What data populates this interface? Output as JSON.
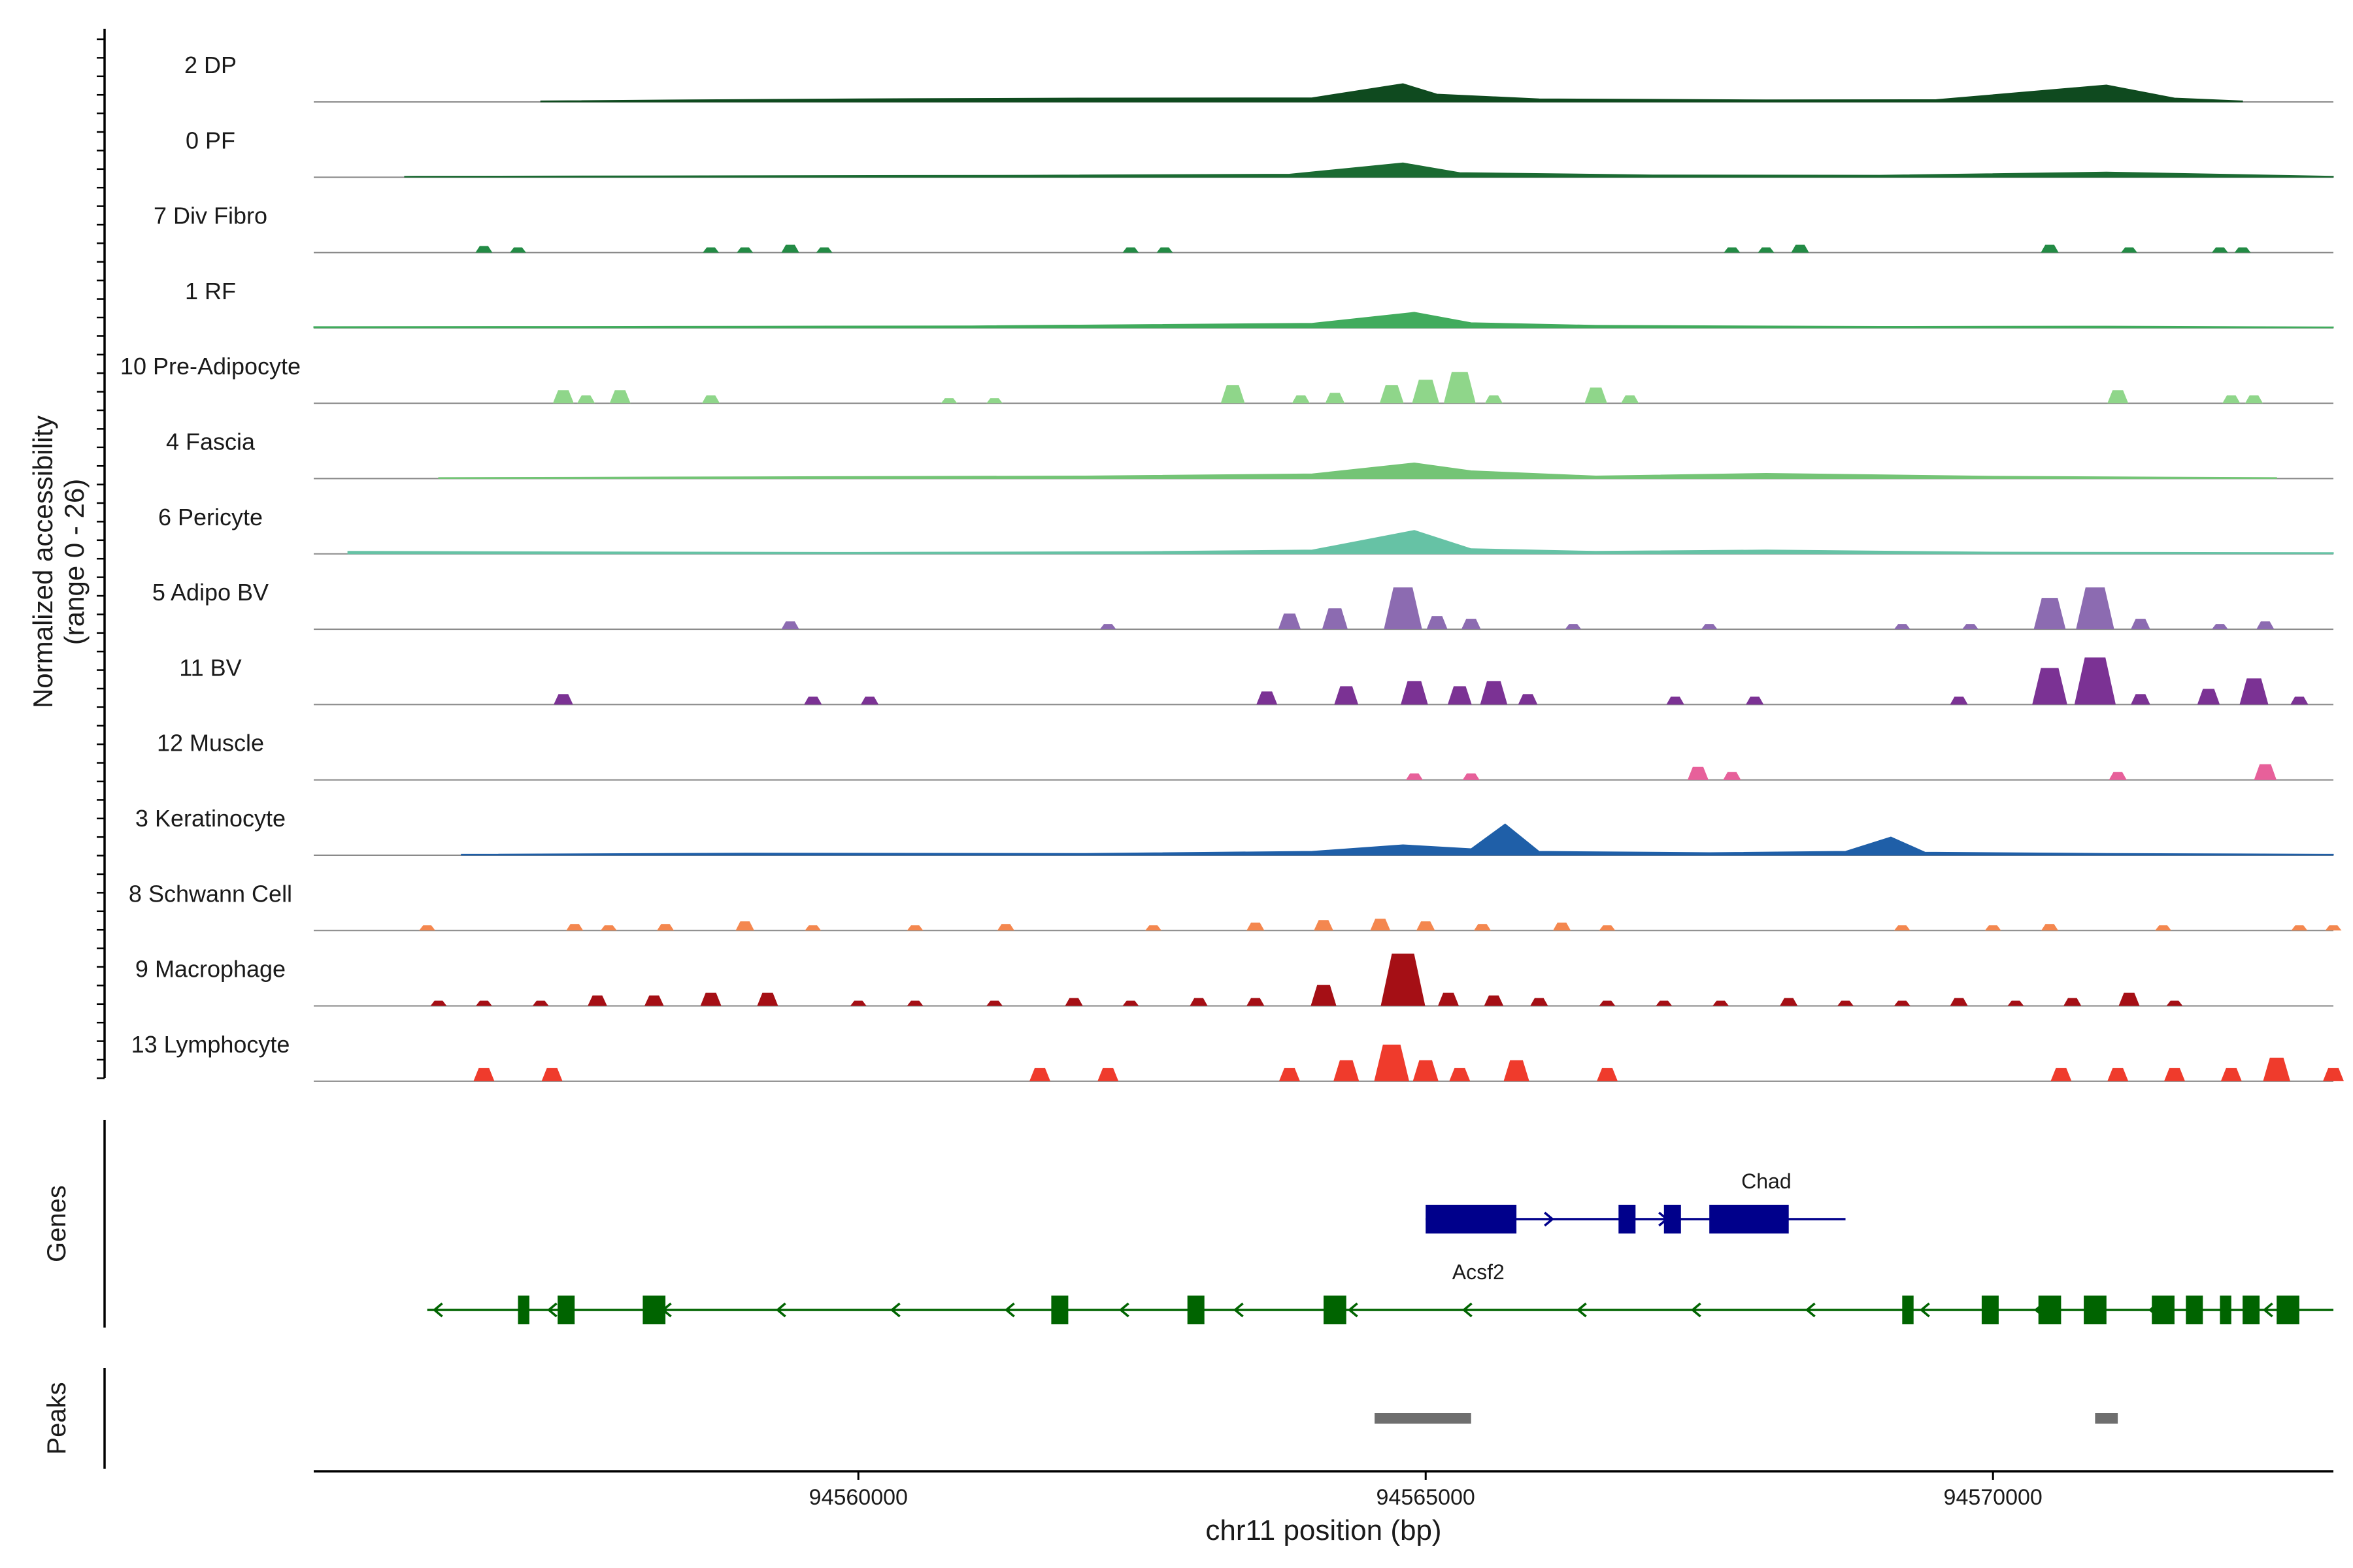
{
  "chart_data": {
    "type": "area",
    "title": "",
    "ylabel": "Normalized accessibility\n(range 0 - 26)",
    "y_range": [
      0,
      26
    ],
    "xlabel": "chr11 position (bp)",
    "xlim": [
      94555200,
      94573000
    ],
    "x_ticks": [
      94560000,
      94565000,
      94570000
    ],
    "x_tick_labels": [
      "94560000",
      "94565000",
      "94570000"
    ],
    "panel_labels": {
      "genes": "Genes",
      "peaks": "Peaks"
    },
    "tracks": [
      {
        "name": "2 DP",
        "color": "#0f4a1f",
        "mode": "continuous",
        "coverage": [
          94557200,
          94572200
        ],
        "points": [
          [
            94557200,
            0.4
          ],
          [
            94558500,
            0.8
          ],
          [
            94560000,
            1.2
          ],
          [
            94562000,
            1.5
          ],
          [
            94564000,
            1.6
          ],
          [
            94564800,
            7.0
          ],
          [
            94565100,
            3.0
          ],
          [
            94566000,
            1.2
          ],
          [
            94568000,
            0.8
          ],
          [
            94569500,
            0.9
          ],
          [
            94571000,
            6.5
          ],
          [
            94571600,
            1.5
          ],
          [
            94572200,
            0.4
          ]
        ]
      },
      {
        "name": "0 PF",
        "color": "#1b6b32",
        "mode": "continuous",
        "coverage": [
          94556000,
          94573000
        ],
        "points": [
          [
            94556000,
            0.4
          ],
          [
            94559000,
            0.6
          ],
          [
            94561500,
            0.8
          ],
          [
            94563800,
            1.2
          ],
          [
            94564800,
            5.5
          ],
          [
            94565300,
            1.8
          ],
          [
            94567000,
            0.9
          ],
          [
            94569000,
            0.8
          ],
          [
            94571000,
            2.0
          ],
          [
            94573000,
            0.4
          ]
        ]
      },
      {
        "name": "7 Div Fibro",
        "color": "#238b45",
        "mode": "blocks",
        "points": [
          [
            94556700,
            2.5
          ],
          [
            94557000,
            2.0
          ],
          [
            94558700,
            2.0
          ],
          [
            94559000,
            2.0
          ],
          [
            94559400,
            3.0
          ],
          [
            94559700,
            2.0
          ],
          [
            94562400,
            2.0
          ],
          [
            94562700,
            2.0
          ],
          [
            94567700,
            2.0
          ],
          [
            94568000,
            2.0
          ],
          [
            94568300,
            3.0
          ],
          [
            94570500,
            3.0
          ],
          [
            94571200,
            2.0
          ],
          [
            94572000,
            2.0
          ],
          [
            94572200,
            2.0
          ]
        ]
      },
      {
        "name": "1 RF",
        "color": "#41ab5d",
        "mode": "continuous",
        "coverage": [
          94555200,
          94573000
        ],
        "points": [
          [
            94555200,
            0.5
          ],
          [
            94558000,
            0.6
          ],
          [
            94561000,
            0.8
          ],
          [
            94564000,
            1.8
          ],
          [
            94564900,
            6.0
          ],
          [
            94565400,
            2.0
          ],
          [
            94566500,
            1.0
          ],
          [
            94569000,
            0.6
          ],
          [
            94571000,
            0.7
          ],
          [
            94573000,
            0.4
          ]
        ]
      },
      {
        "name": "10 Pre-Adipocyte",
        "color": "#8fd68a",
        "mode": "blocks",
        "points": [
          [
            94557400,
            5.0
          ],
          [
            94557600,
            3.0
          ],
          [
            94557900,
            5.0
          ],
          [
            94558700,
            3.0
          ],
          [
            94560800,
            2.0
          ],
          [
            94561200,
            2.0
          ],
          [
            94563300,
            7.0
          ],
          [
            94563900,
            3.0
          ],
          [
            94564200,
            4.0
          ],
          [
            94564700,
            7.0
          ],
          [
            94565000,
            9.0
          ],
          [
            94565300,
            12.0
          ],
          [
            94565600,
            3.0
          ],
          [
            94566500,
            6.0
          ],
          [
            94566800,
            3.0
          ],
          [
            94571100,
            5.0
          ],
          [
            94572100,
            3.0
          ],
          [
            94572300,
            3.0
          ]
        ]
      },
      {
        "name": "4 Fascia",
        "color": "#74c476",
        "mode": "continuous",
        "coverage": [
          94556300,
          94572500
        ],
        "points": [
          [
            94556300,
            0.4
          ],
          [
            94559000,
            0.7
          ],
          [
            94562000,
            1.0
          ],
          [
            94564000,
            1.8
          ],
          [
            94564900,
            6.0
          ],
          [
            94565400,
            3.0
          ],
          [
            94566500,
            1.0
          ],
          [
            94568000,
            2.0
          ],
          [
            94570000,
            0.9
          ],
          [
            94572500,
            0.4
          ]
        ]
      },
      {
        "name": "6 Pericyte",
        "color": "#66c2a5",
        "mode": "continuous",
        "coverage": [
          94555500,
          94573000
        ],
        "points": [
          [
            94555500,
            1.0
          ],
          [
            94557500,
            0.8
          ],
          [
            94560000,
            0.6
          ],
          [
            94562500,
            0.9
          ],
          [
            94564000,
            1.5
          ],
          [
            94564900,
            9.0
          ],
          [
            94565400,
            2.0
          ],
          [
            94566500,
            1.0
          ],
          [
            94568000,
            1.5
          ],
          [
            94570000,
            0.7
          ],
          [
            94573000,
            0.5
          ]
        ]
      },
      {
        "name": "5 Adipo BV",
        "color": "#8c6bb1",
        "mode": "blocks",
        "points": [
          [
            94559400,
            3.0
          ],
          [
            94562200,
            2.0
          ],
          [
            94563800,
            6.0
          ],
          [
            94564200,
            8.0
          ],
          [
            94564800,
            16.0
          ],
          [
            94565100,
            5.0
          ],
          [
            94565400,
            4.0
          ],
          [
            94566300,
            2.0
          ],
          [
            94567500,
            2.0
          ],
          [
            94569200,
            2.0
          ],
          [
            94569800,
            2.0
          ],
          [
            94570500,
            12.0
          ],
          [
            94570900,
            16.0
          ],
          [
            94571300,
            4.0
          ],
          [
            94572000,
            2.0
          ],
          [
            94572400,
            3.0
          ]
        ]
      },
      {
        "name": "11 BV",
        "color": "#7b3294",
        "mode": "blocks",
        "points": [
          [
            94557400,
            4.0
          ],
          [
            94559600,
            3.0
          ],
          [
            94560100,
            3.0
          ],
          [
            94563600,
            5.0
          ],
          [
            94564300,
            7.0
          ],
          [
            94564900,
            9.0
          ],
          [
            94565300,
            7.0
          ],
          [
            94565600,
            9.0
          ],
          [
            94565900,
            4.0
          ],
          [
            94567200,
            3.0
          ],
          [
            94567900,
            3.0
          ],
          [
            94569700,
            3.0
          ],
          [
            94570500,
            14.0
          ],
          [
            94570900,
            18.0
          ],
          [
            94571300,
            4.0
          ],
          [
            94571900,
            6.0
          ],
          [
            94572300,
            10.0
          ],
          [
            94572700,
            3.0
          ]
        ]
      },
      {
        "name": "12 Muscle",
        "color": "#e7609a",
        "mode": "blocks",
        "points": [
          [
            94564900,
            2.5
          ],
          [
            94565400,
            2.5
          ],
          [
            94567400,
            5.0
          ],
          [
            94567700,
            3.0
          ],
          [
            94571100,
            3.0
          ],
          [
            94572400,
            6.0
          ]
        ]
      },
      {
        "name": "3 Keratinocyte",
        "color": "#1f5fa8",
        "mode": "continuous",
        "coverage": [
          94556500,
          94573000
        ],
        "points": [
          [
            94556500,
            0.4
          ],
          [
            94559000,
            0.8
          ],
          [
            94562000,
            0.7
          ],
          [
            94564000,
            1.5
          ],
          [
            94564800,
            4.0
          ],
          [
            94565400,
            2.5
          ],
          [
            94565700,
            12.0
          ],
          [
            94566000,
            1.5
          ],
          [
            94567500,
            1.0
          ],
          [
            94568700,
            1.5
          ],
          [
            94569100,
            7.0
          ],
          [
            94569400,
            1.2
          ],
          [
            94571000,
            0.7
          ],
          [
            94573000,
            0.4
          ]
        ]
      },
      {
        "name": "8 Schwann Cell",
        "color": "#f4874f",
        "mode": "blocks",
        "points": [
          [
            94556200,
            2.0
          ],
          [
            94557500,
            2.5
          ],
          [
            94557800,
            2.0
          ],
          [
            94558300,
            2.5
          ],
          [
            94559000,
            3.5
          ],
          [
            94559600,
            2.0
          ],
          [
            94560500,
            2.0
          ],
          [
            94561300,
            2.5
          ],
          [
            94562600,
            2.0
          ],
          [
            94563500,
            3.0
          ],
          [
            94564100,
            4.0
          ],
          [
            94564600,
            4.5
          ],
          [
            94565000,
            3.5
          ],
          [
            94565500,
            2.5
          ],
          [
            94566200,
            3.0
          ],
          [
            94566600,
            2.0
          ],
          [
            94569200,
            2.0
          ],
          [
            94570000,
            2.0
          ],
          [
            94570500,
            2.5
          ],
          [
            94571500,
            2.0
          ],
          [
            94572700,
            2.0
          ],
          [
            94573000,
            2.0
          ]
        ]
      },
      {
        "name": "9 Macrophage",
        "color": "#a50f15",
        "mode": "blocks",
        "points": [
          [
            94556300,
            2.0
          ],
          [
            94556700,
            2.0
          ],
          [
            94557200,
            2.0
          ],
          [
            94557700,
            4.0
          ],
          [
            94558200,
            4.0
          ],
          [
            94558700,
            5.0
          ],
          [
            94559200,
            5.0
          ],
          [
            94560000,
            2.0
          ],
          [
            94560500,
            2.0
          ],
          [
            94561200,
            2.0
          ],
          [
            94561900,
            3.0
          ],
          [
            94562400,
            2.0
          ],
          [
            94563000,
            3.0
          ],
          [
            94563500,
            3.0
          ],
          [
            94564100,
            8.0
          ],
          [
            94564800,
            20.0
          ],
          [
            94565200,
            5.0
          ],
          [
            94565600,
            4.0
          ],
          [
            94566000,
            3.0
          ],
          [
            94566600,
            2.0
          ],
          [
            94567100,
            2.0
          ],
          [
            94567600,
            2.0
          ],
          [
            94568200,
            3.0
          ],
          [
            94568700,
            2.0
          ],
          [
            94569200,
            2.0
          ],
          [
            94569700,
            3.0
          ],
          [
            94570200,
            2.0
          ],
          [
            94570700,
            3.0
          ],
          [
            94571200,
            5.0
          ],
          [
            94571600,
            2.0
          ]
        ]
      },
      {
        "name": "13 Lymphocyte",
        "color": "#ef3b2c",
        "mode": "blocks",
        "points": [
          [
            94556700,
            5.0
          ],
          [
            94557300,
            5.0
          ],
          [
            94561600,
            5.0
          ],
          [
            94562200,
            5.0
          ],
          [
            94563800,
            5.0
          ],
          [
            94564300,
            8.0
          ],
          [
            94564700,
            14.0
          ],
          [
            94565000,
            8.0
          ],
          [
            94565300,
            5.0
          ],
          [
            94565800,
            8.0
          ],
          [
            94566600,
            5.0
          ],
          [
            94570600,
            5.0
          ],
          [
            94571100,
            5.0
          ],
          [
            94571600,
            5.0
          ],
          [
            94572100,
            5.0
          ],
          [
            94572500,
            9.0
          ],
          [
            94573000,
            5.0
          ]
        ]
      }
    ],
    "genes": [
      {
        "name": "Chad",
        "strand": "+",
        "color": "#00008b",
        "start": 94565000,
        "end": 94568700,
        "exons": [
          [
            94565000,
            94565800
          ],
          [
            94566700,
            94566850
          ],
          [
            94567100,
            94567250
          ],
          [
            94567500,
            94568200
          ]
        ]
      },
      {
        "name": "Acsf2",
        "strand": "-",
        "color": "#006400",
        "start": 94556200,
        "end": 94573000,
        "exons": [
          [
            94557000,
            94557100
          ],
          [
            94557350,
            94557500
          ],
          [
            94558100,
            94558300
          ],
          [
            94561700,
            94561850
          ],
          [
            94562900,
            94563050
          ],
          [
            94564100,
            94564300
          ],
          [
            94569200,
            94569300
          ],
          [
            94569900,
            94570050
          ],
          [
            94570400,
            94570600
          ],
          [
            94570800,
            94571000
          ],
          [
            94571400,
            94571600
          ],
          [
            94571700,
            94571850
          ],
          [
            94572000,
            94572100
          ],
          [
            94572200,
            94572350
          ],
          [
            94572500,
            94572700
          ]
        ]
      }
    ],
    "peaks": [
      [
        94564550,
        94565400
      ],
      [
        94570900,
        94571100
      ]
    ]
  }
}
